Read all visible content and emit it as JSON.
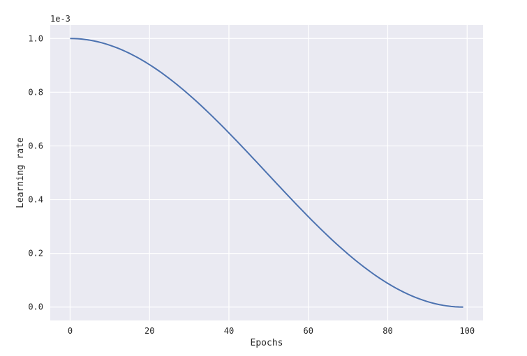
{
  "chart_data": {
    "type": "line",
    "title": "",
    "xlabel": "Epochs",
    "ylabel": "Learning rate",
    "y_offset_label": "1e-3",
    "xlim": [
      -5,
      104
    ],
    "ylim": [
      -0.05,
      1.05
    ],
    "x_ticks": [
      0,
      20,
      40,
      60,
      80,
      100
    ],
    "x_tick_labels": [
      "0",
      "20",
      "40",
      "60",
      "80",
      "100"
    ],
    "y_ticks": [
      0.0,
      0.2,
      0.4,
      0.6,
      0.8,
      1.0
    ],
    "y_tick_labels": [
      "0.0",
      "0.2",
      "0.4",
      "0.6",
      "0.8",
      "1.0"
    ],
    "grid": true,
    "colors": {
      "background": "#eaeaf2",
      "grid": "#ffffff",
      "line": "#4c72b0"
    },
    "series": [
      {
        "name": "Learning rate",
        "schedule": "cosine",
        "x": [
          0,
          1,
          2,
          3,
          4,
          5,
          6,
          7,
          8,
          9,
          10,
          11,
          12,
          13,
          14,
          15,
          16,
          17,
          18,
          19,
          20,
          21,
          22,
          23,
          24,
          25,
          26,
          27,
          28,
          29,
          30,
          31,
          32,
          33,
          34,
          35,
          36,
          37,
          38,
          39,
          40,
          41,
          42,
          43,
          44,
          45,
          46,
          47,
          48,
          49,
          50,
          51,
          52,
          53,
          54,
          55,
          56,
          57,
          58,
          59,
          60,
          61,
          62,
          63,
          64,
          65,
          66,
          67,
          68,
          69,
          70,
          71,
          72,
          73,
          74,
          75,
          76,
          77,
          78,
          79,
          80,
          81,
          82,
          83,
          84,
          85,
          86,
          87,
          88,
          89,
          90,
          91,
          92,
          93,
          94,
          95,
          96,
          97,
          98,
          99
        ],
        "values": [
          1.0,
          0.9997,
          0.999,
          0.9977,
          0.996,
          0.9937,
          0.991,
          0.9877,
          0.984,
          0.9798,
          0.9752,
          0.97,
          0.9644,
          0.9584,
          0.9519,
          0.945,
          0.9376,
          0.9298,
          0.9216,
          0.9131,
          0.9041,
          0.8948,
          0.8851,
          0.8751,
          0.8647,
          0.854,
          0.843,
          0.8317,
          0.8201,
          0.8082,
          0.7961,
          0.7837,
          0.7711,
          0.7583,
          0.7453,
          0.7321,
          0.7187,
          0.7052,
          0.6915,
          0.6777,
          0.6637,
          0.6497,
          0.6356,
          0.6214,
          0.6071,
          0.5928,
          0.5785,
          0.5641,
          0.5498,
          0.5354,
          0.5211,
          0.5067,
          0.4925,
          0.4782,
          0.4641,
          0.45,
          0.436,
          0.4221,
          0.4084,
          0.3948,
          0.3813,
          0.368,
          0.3548,
          0.3419,
          0.3292,
          0.3167,
          0.3044,
          0.2924,
          0.2806,
          0.2691,
          0.2579,
          0.247,
          0.2364,
          0.2261,
          0.2161,
          0.2065,
          0.1972,
          0.1882,
          0.1796,
          0.1714,
          0.1636,
          0.1561,
          0.1491,
          0.1424,
          0.1362,
          0.1304,
          0.125,
          0.1201,
          0.1156,
          0.1115,
          0.1079,
          0.1048,
          0.1021,
          0.0998,
          0.098,
          0.0967,
          0.0958,
          0.0953,
          0.0,
          0.0
        ]
      }
    ]
  }
}
